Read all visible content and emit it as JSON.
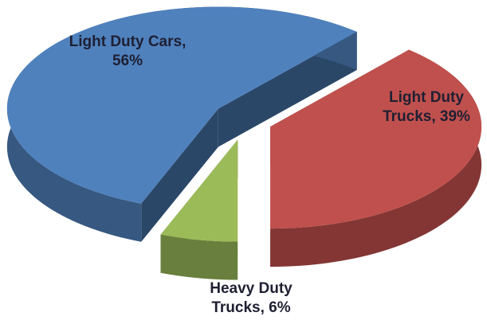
{
  "chart_data": {
    "type": "pie3d",
    "values": [
      56,
      39,
      6
    ],
    "value_labels": [
      "Light Duty Cars, 56%",
      "Light Duty Trucks, 39%",
      "Heavy Duty Trucks, 6%"
    ],
    "colors": [
      "#4f81bd",
      "#c0504d",
      "#9bbb59"
    ]
  }
}
